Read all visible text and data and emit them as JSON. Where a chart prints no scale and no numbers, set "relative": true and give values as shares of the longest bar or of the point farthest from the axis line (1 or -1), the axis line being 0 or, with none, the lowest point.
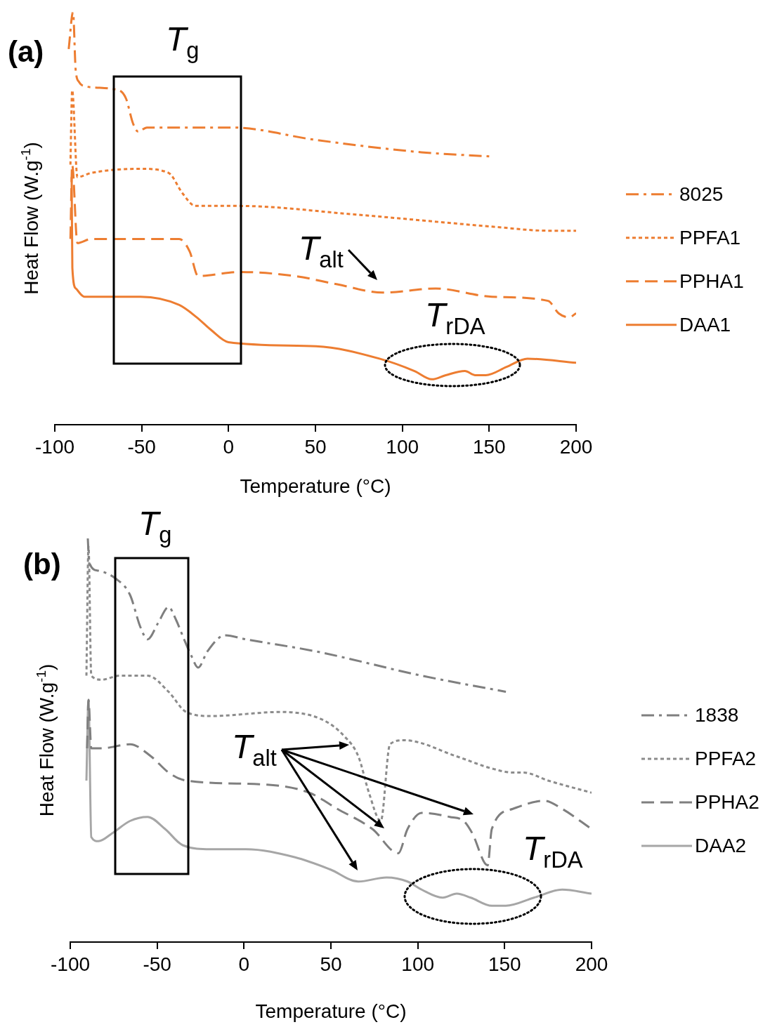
{
  "chart_data": [
    {
      "type": "line",
      "xlabel": "Temperature (°C)",
      "ylabel": "Heat Flow (W.g$^{-1}$)",
      "relative": true,
      "xlim": [
        -100,
        200
      ],
      "xticks": [
        -100,
        -50,
        0,
        50,
        100,
        150,
        200
      ],
      "grid": false,
      "legend": "right",
      "marker": "none",
      "annotations": [
        "(a)",
        "T$_{g}$",
        "T$_{alt}$",
        "T$_{rDA}$"
      ],
      "series": [
        {
          "name": "8025",
          "color": "#ed7d31",
          "line_style": "dashdot",
          "x": [
            -92,
            -89.5,
            -88,
            -86,
            -83,
            -63,
            -59,
            -55,
            -52,
            -47,
            -26,
            2,
            50,
            111,
            150
          ],
          "values": [
            0.91,
            1.0,
            0.86,
            0.83,
            0.82,
            0.81,
            0.79,
            0.73,
            0.71,
            0.72,
            0.72,
            0.72,
            0.69,
            0.66,
            0.65
          ]
        },
        {
          "name": "PPFA1",
          "color": "#ed7d31",
          "line_style": "dotted",
          "x": [
            -91,
            -90,
            -87,
            -79,
            -50.7,
            -34.5,
            -26.4,
            -19.1,
            6,
            70.6,
            151.5,
            183.9,
            200
          ],
          "values": [
            0.63,
            0.81,
            0.6,
            0.61,
            0.62,
            0.61,
            0.56,
            0.53,
            0.53,
            0.51,
            0.48,
            0.47,
            0.47
          ]
        },
        {
          "name": "PPHA1",
          "color": "#ed7d31",
          "line_style": "dashed",
          "x": [
            -91,
            -90,
            -87,
            -79,
            -50.7,
            -28.4,
            -22.4,
            -17.5,
            5.9,
            38.3,
            62.6,
            88.8,
            119.2,
            151.5,
            183.9,
            189.9,
            196,
            200
          ],
          "values": [
            0.45,
            0.63,
            0.44,
            0.45,
            0.45,
            0.45,
            0.42,
            0.36,
            0.37,
            0.36,
            0.34,
            0.32,
            0.33,
            0.31,
            0.3,
            0.27,
            0.26,
            0.27
          ]
        },
        {
          "name": "DAA1",
          "color": "#ed7d31",
          "line_style": "solid",
          "x": [
            -90.3,
            -89.9,
            -87.9,
            -83,
            -50.7,
            -28.4,
            -18.3,
            -10.2,
            -0.1,
            50.4,
            86.8,
            107,
            117,
            125,
            136,
            142,
            148,
            160,
            172,
            200
          ],
          "values": [
            0.6,
            0.38,
            0.33,
            0.31,
            0.31,
            0.29,
            0.26,
            0.23,
            0.2,
            0.19,
            0.16,
            0.13,
            0.11,
            0.12,
            0.13,
            0.12,
            0.12,
            0.14,
            0.16,
            0.15
          ]
        }
      ]
    },
    {
      "type": "line",
      "xlabel": "Temperature (°C)",
      "ylabel": "Heat Flow (W.g$^{-1}$)",
      "relative": true,
      "xlim": [
        -100,
        200
      ],
      "xticks": [
        -100,
        -50,
        0,
        50,
        100,
        150,
        200
      ],
      "grid": false,
      "legend": "right",
      "marker": "none",
      "annotations": [
        "(b)",
        "T$_{g}$",
        "T$_{alt}$",
        "T$_{rDA}$"
      ],
      "series": [
        {
          "name": "1838",
          "color": "#7f7f7f",
          "line_style": "dashdot",
          "x": [
            -89.9,
            -89.1,
            -83.8,
            -73.7,
            -65.6,
            -59.6,
            -55.5,
            -49.5,
            -43.4,
            -39.3,
            -34.5,
            -30.4,
            -26.4,
            -21.1,
            -11,
            1.1,
            41.5,
            102.2,
            150.7
          ],
          "values": [
            1.0,
            0.94,
            0.92,
            0.9,
            0.86,
            0.78,
            0.75,
            0.79,
            0.83,
            0.8,
            0.75,
            0.71,
            0.68,
            0.72,
            0.76,
            0.75,
            0.72,
            0.66,
            0.62
          ]
        },
        {
          "name": "PPFA2",
          "color": "#8c8c8c",
          "line_style": "dotted",
          "x": [
            -90.7,
            -89.5,
            -87.9,
            -81.8,
            -71.7,
            -55.5,
            -43.4,
            -33.3,
            -19.1,
            21.3,
            45.6,
            57.7,
            65.8,
            71.9,
            78.7,
            84,
            92.1,
            122.4,
            142.6,
            154.7,
            160.8,
            175,
            200
          ],
          "values": [
            0.66,
            0.98,
            0.66,
            0.65,
            0.66,
            0.66,
            0.62,
            0.57,
            0.56,
            0.57,
            0.55,
            0.51,
            0.46,
            0.37,
            0.3,
            0.49,
            0.5,
            0.46,
            0.43,
            0.42,
            0.42,
            0.4,
            0.37
          ]
        },
        {
          "name": "PPHA2",
          "color": "#7f7f7f",
          "line_style": "dashed",
          "x": [
            -90.3,
            -89.5,
            -87.9,
            -81.8,
            -65.6,
            -53.5,
            -43.4,
            -33.3,
            13.2,
            37.5,
            53.7,
            73.9,
            88.8,
            94.1,
            102.2,
            118.4,
            126.4,
            131.3,
            140.2,
            142.6,
            154.7,
            172.9,
            183.1,
            200
          ],
          "values": [
            0.48,
            0.6,
            0.48,
            0.48,
            0.49,
            0.46,
            0.42,
            0.4,
            0.39,
            0.37,
            0.33,
            0.28,
            0.22,
            0.28,
            0.32,
            0.31,
            0.3,
            0.27,
            0.19,
            0.28,
            0.33,
            0.35,
            0.33,
            0.28
          ]
        },
        {
          "name": "DAA2",
          "color": "#a6a6a6",
          "line_style": "solid",
          "x": [
            -90.7,
            -89.5,
            -87.9,
            -83.8,
            -75.7,
            -65.6,
            -55.5,
            -45.4,
            -35.3,
            -19.1,
            1.1,
            29.4,
            49.6,
            65.8,
            82,
            94.1,
            102.2,
            114.3,
            122.4,
            130.5,
            142.6,
            150.7,
            166.9,
            183.1,
            200
          ],
          "values": [
            0.4,
            0.6,
            0.26,
            0.25,
            0.27,
            0.3,
            0.31,
            0.28,
            0.24,
            0.23,
            0.23,
            0.21,
            0.18,
            0.15,
            0.16,
            0.15,
            0.13,
            0.11,
            0.12,
            0.11,
            0.09,
            0.09,
            0.11,
            0.13,
            0.12
          ]
        }
      ]
    }
  ]
}
